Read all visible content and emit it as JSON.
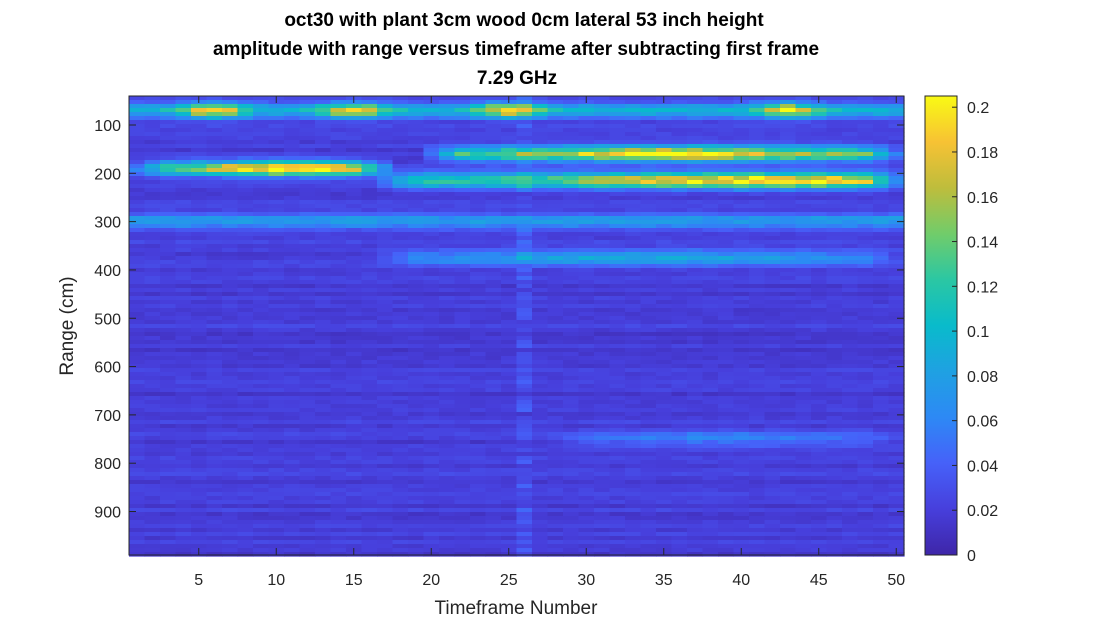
{
  "chart_data": {
    "type": "heatmap",
    "title": [
      "oct30 with plant 3cm wood 0cm lateral 53 inch height",
      "amplitude with range versus timeframe after subtracting first frame",
      "7.29 GHz"
    ],
    "xlabel": "Timeframe Number",
    "ylabel": "Range (cm)",
    "xlim": [
      0.5,
      50.5
    ],
    "ylim": [
      40,
      990
    ],
    "y_reversed": true,
    "xticks": [
      5,
      10,
      15,
      20,
      25,
      30,
      35,
      40,
      45,
      50
    ],
    "yticks": [
      100,
      200,
      300,
      400,
      500,
      600,
      700,
      800,
      900
    ],
    "colormap": "parula",
    "clim": [
      0,
      0.205
    ],
    "colorbar_ticks": [
      0,
      0.02,
      0.04,
      0.06,
      0.08,
      0.1,
      0.12,
      0.14,
      0.16,
      0.18,
      0.2
    ],
    "features": [
      {
        "label": "band ~70 cm",
        "range_cm": 70,
        "amplitude_approx": 0.07,
        "peak_frames": [
          6,
          15,
          25,
          43
        ],
        "peak_amplitude": 0.17
      },
      {
        "label": "band ~190 cm (early frames)",
        "range_cm": 190,
        "frames": [
          1,
          17
        ],
        "peak_frame": 11,
        "peak_amplitude": 0.19
      },
      {
        "label": "band ~160 cm (later frames)",
        "range_cm": 160,
        "frames": [
          20,
          50
        ],
        "peak_frame": 36,
        "peak_amplitude": 0.18
      },
      {
        "label": "band ~215 cm (later frames)",
        "range_cm": 215,
        "frames": [
          17,
          50
        ],
        "peak_frame": 41,
        "peak_amplitude": 0.19
      },
      {
        "label": "band ~300 cm",
        "range_cm": 300,
        "amplitude_approx": 0.06
      },
      {
        "label": "band ~375 cm",
        "range_cm": 375,
        "frames": [
          17,
          50
        ],
        "amplitude_approx": 0.07
      },
      {
        "label": "band ~750 cm",
        "range_cm": 750,
        "frames": [
          28,
          50
        ],
        "amplitude_approx": 0.04
      }
    ],
    "background_amplitude": 0.015
  }
}
